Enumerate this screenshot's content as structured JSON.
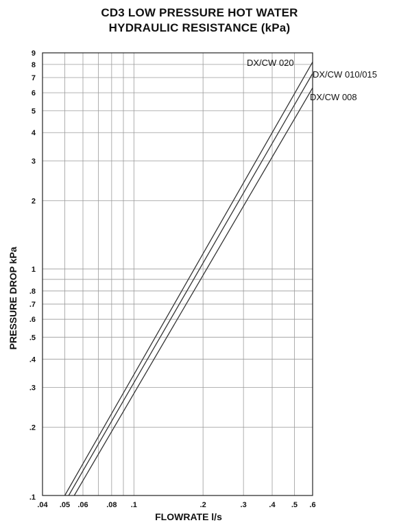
{
  "chart_data": {
    "type": "line",
    "title_line1": "CD3 LOW PRESSURE HOT WATER",
    "title_line2": "HYDRAULIC RESISTANCE (kPa)",
    "xlabel": "FLOWRATE l/s",
    "ylabel": "PRESSURE DROP kPa",
    "x_scale": "log",
    "y_scale": "log",
    "xlim": [
      0.04,
      0.6
    ],
    "ylim": [
      0.1,
      9
    ],
    "grid": true,
    "x_ticks": [
      {
        "value": 0.04,
        "label": ".04"
      },
      {
        "value": 0.05,
        "label": ".05"
      },
      {
        "value": 0.06,
        "label": ".06"
      },
      {
        "value": 0.08,
        "label": ".08"
      },
      {
        "value": 0.1,
        "label": ".1"
      },
      {
        "value": 0.2,
        "label": ".2"
      },
      {
        "value": 0.3,
        "label": ".3"
      },
      {
        "value": 0.4,
        "label": ".4"
      },
      {
        "value": 0.5,
        "label": ".5"
      },
      {
        "value": 0.6,
        "label": ".6"
      }
    ],
    "x_gridlines": [
      0.05,
      0.06,
      0.07,
      0.08,
      0.09,
      0.1,
      0.2,
      0.3,
      0.4,
      0.5
    ],
    "y_ticks": [
      {
        "value": 0.1,
        "label": ".1"
      },
      {
        "value": 0.2,
        "label": ".2"
      },
      {
        "value": 0.3,
        "label": ".3"
      },
      {
        "value": 0.4,
        "label": ".4"
      },
      {
        "value": 0.5,
        "label": ".5"
      },
      {
        "value": 0.6,
        "label": ".6"
      },
      {
        "value": 0.7,
        "label": ".7"
      },
      {
        "value": 0.8,
        "label": ".8"
      },
      {
        "value": 1,
        "label": "1"
      },
      {
        "value": 2,
        "label": "2"
      },
      {
        "value": 3,
        "label": "3"
      },
      {
        "value": 4,
        "label": "4"
      },
      {
        "value": 5,
        "label": "5"
      },
      {
        "value": 6,
        "label": "6"
      },
      {
        "value": 7,
        "label": "7"
      },
      {
        "value": 8,
        "label": "8"
      },
      {
        "value": 9,
        "label": "9"
      }
    ],
    "y_gridlines": [
      0.2,
      0.3,
      0.4,
      0.5,
      0.6,
      0.7,
      0.8,
      0.9,
      1,
      2,
      3,
      4,
      5,
      6,
      7,
      8
    ],
    "series": [
      {
        "name": "DX/CW 020",
        "x": [
          0.05,
          0.6
        ],
        "y": [
          0.1,
          8.2
        ]
      },
      {
        "name": "DX/CW 010/015",
        "x": [
          0.052,
          0.6
        ],
        "y": [
          0.1,
          7.3
        ]
      },
      {
        "name": "DX/CW 008",
        "x": [
          0.055,
          0.6
        ],
        "y": [
          0.1,
          6.3
        ]
      }
    ]
  },
  "colors": {
    "line": "#333333",
    "grid": "#9a9a9a",
    "frame": "#222222"
  }
}
